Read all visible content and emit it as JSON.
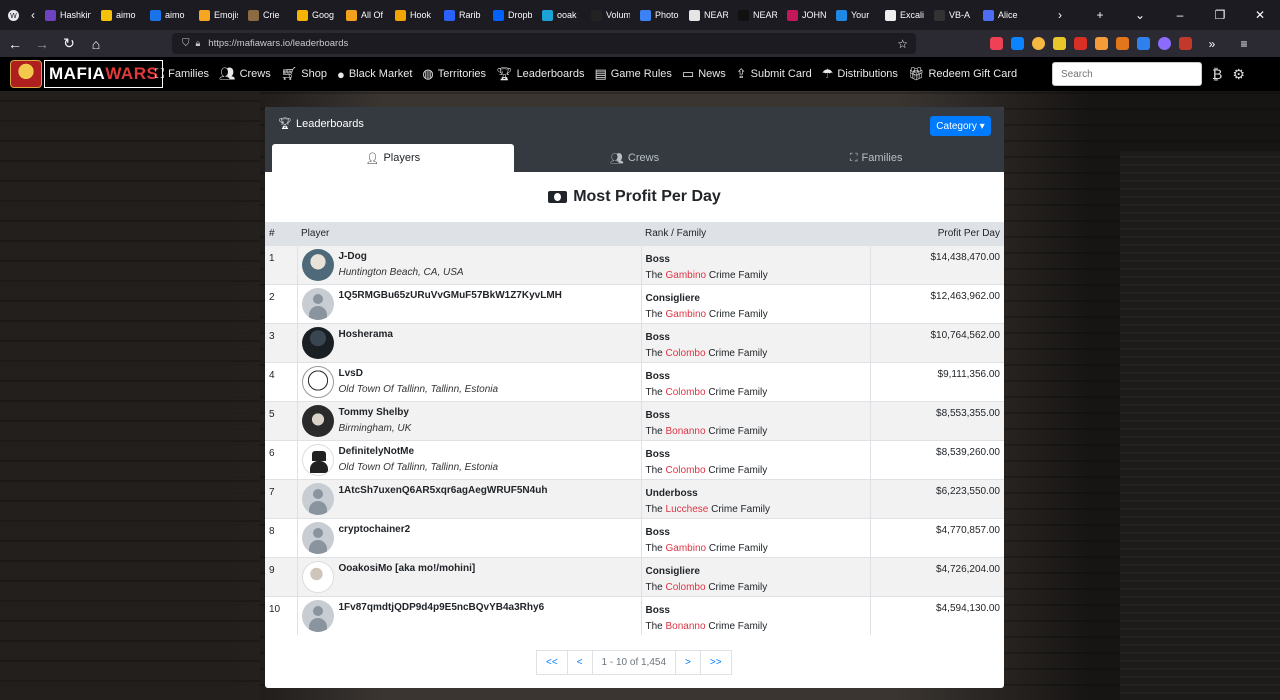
{
  "browser": {
    "tabs": [
      {
        "label": "Hashking",
        "color": "#6f42c1"
      },
      {
        "label": "aimo",
        "color": "#f4c20d"
      },
      {
        "label": "aimo",
        "color": "#1a73e8"
      },
      {
        "label": "Emojis",
        "color": "#f5a623"
      },
      {
        "label": "Crie",
        "color": "#8b6c42"
      },
      {
        "label": "Goog",
        "color": "#f4b400"
      },
      {
        "label": "All Of",
        "color": "#f4a11d"
      },
      {
        "label": "Hook",
        "color": "#f0a500"
      },
      {
        "label": "Rarib",
        "color": "#2962ff"
      },
      {
        "label": "Dropb",
        "color": "#0061ff"
      },
      {
        "label": "ooak",
        "color": "#1aa3d4"
      },
      {
        "label": "Volum",
        "color": "#222222"
      },
      {
        "label": "Photo",
        "color": "#3b82f6"
      },
      {
        "label": "NEAR",
        "color": "#e5e5e5"
      },
      {
        "label": "NEAR",
        "color": "#111111"
      },
      {
        "label": "JOHN",
        "color": "#c2185b"
      },
      {
        "label": "Your",
        "color": "#1e88e5"
      },
      {
        "label": "Excali",
        "color": "#eeeeee"
      },
      {
        "label": "VB-A",
        "color": "#333333"
      },
      {
        "label": "Alice",
        "color": "#4c6ef5"
      }
    ],
    "url": "https://mafiawars.io/leaderboards"
  },
  "site": {
    "logo_part1": "MAFIA",
    "logo_part2": "WARS",
    "nav": [
      "Families",
      "Crews",
      "Shop",
      "Black Market",
      "Territories",
      "Leaderboards",
      "Game Rules",
      "News",
      "Submit Card",
      "Distributions",
      "Redeem Gift Card"
    ],
    "search_placeholder": "Search"
  },
  "card": {
    "title": "Leaderboards",
    "category_label": "Category",
    "tabs": [
      "Players",
      "Crews",
      "Families"
    ],
    "active_tab": "Players",
    "board_title": "Most Profit Per Day",
    "columns": [
      "#",
      "Player",
      "Rank / Family",
      "Profit Per Day"
    ],
    "rows": [
      {
        "num": "1",
        "name": "J-Dog",
        "location": "Huntington Beach, CA, USA",
        "rank": "Boss",
        "family": "Gambino",
        "profit": "$14,438,470.00",
        "avatar": "photo1"
      },
      {
        "num": "2",
        "name": "1Q5RMGBu65zURuVvGMuF57BkW1Z7KyvLMH",
        "location": "",
        "rank": "Consigliere",
        "family": "Gambino",
        "profit": "$12,463,962.00",
        "avatar": "default"
      },
      {
        "num": "3",
        "name": "Hosherama",
        "location": "",
        "rank": "Boss",
        "family": "Colombo",
        "profit": "$10,764,562.00",
        "avatar": "photo2"
      },
      {
        "num": "4",
        "name": "LvsD",
        "location": "Old Town Of Tallinn, Tallinn, Estonia",
        "rank": "Boss",
        "family": "Colombo",
        "profit": "$9,111,356.00",
        "avatar": "photo3"
      },
      {
        "num": "5",
        "name": "Tommy Shelby",
        "location": "Birmingham, UK",
        "rank": "Boss",
        "family": "Bonanno",
        "profit": "$8,553,355.00",
        "avatar": "photo4"
      },
      {
        "num": "6",
        "name": "DefinitelyNotMe",
        "location": "Old Town Of Tallinn, Tallinn, Estonia",
        "rank": "Boss",
        "family": "Colombo",
        "profit": "$8,539,260.00",
        "avatar": "photo5"
      },
      {
        "num": "7",
        "name": "1AtcSh7uxenQ6AR5xqr6agAegWRUF5N4uh",
        "location": "",
        "rank": "Underboss",
        "family": "Lucchese",
        "profit": "$6,223,550.00",
        "avatar": "default"
      },
      {
        "num": "8",
        "name": "cryptochainer2",
        "location": "",
        "rank": "Boss",
        "family": "Gambino",
        "profit": "$4,770,857.00",
        "avatar": "default"
      },
      {
        "num": "9",
        "name": "OoakosiMo [aka mo!/mohini]",
        "location": "",
        "rank": "Consigliere",
        "family": "Colombo",
        "profit": "$4,726,204.00",
        "avatar": "photo6"
      },
      {
        "num": "10",
        "name": "1Fv87qmdtjQDP9d4p9E5ncBQvYB4a3Rhy6",
        "location": "",
        "rank": "Boss",
        "family": "Bonanno",
        "profit": "$4,594,130.00",
        "avatar": "default"
      }
    ],
    "family_prefix": "The",
    "family_suffix": "Crime Family",
    "pagination": {
      "first": "<<",
      "prev": "<",
      "info": "1 - 10 of 1,454",
      "next": ">",
      "last": ">>"
    }
  }
}
